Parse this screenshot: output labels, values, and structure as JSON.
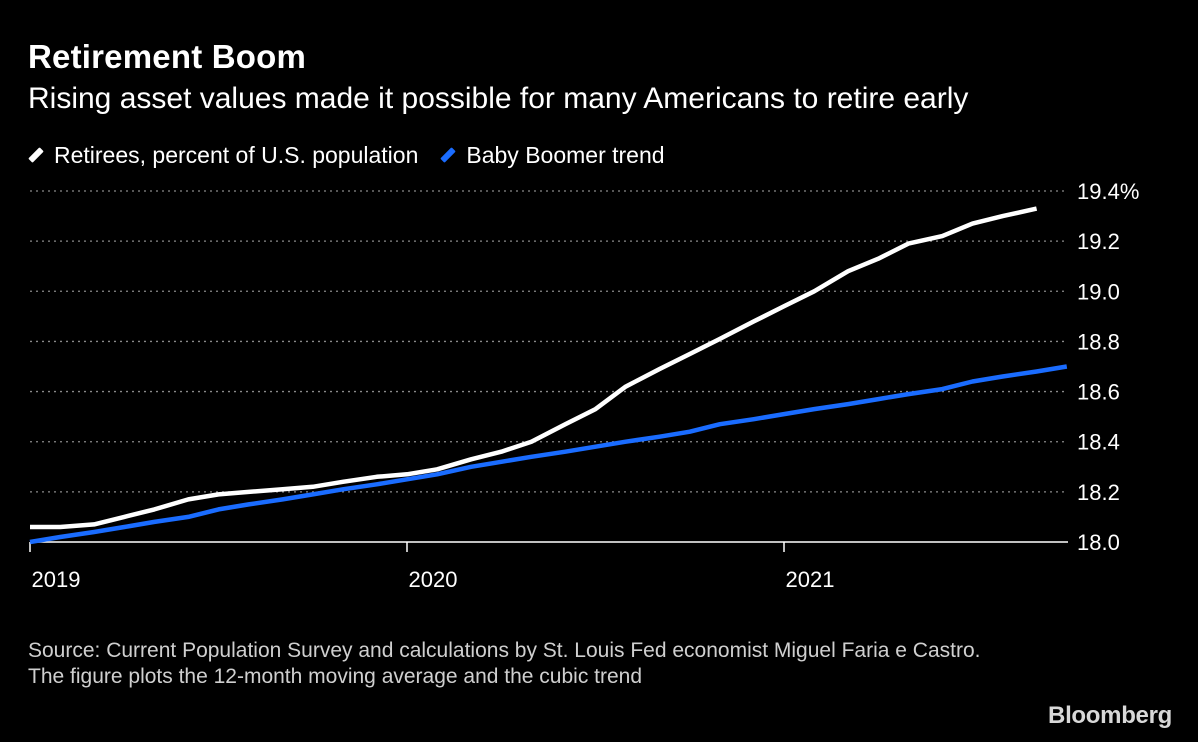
{
  "title": "Retirement Boom",
  "subtitle": "Rising asset values made it possible for many Americans to retire early",
  "source": "Source: Current Population Survey and calculations by St. Louis Fed economist Miguel Faria e Castro. The figure plots the 12-month moving average and the cubic trend",
  "brand": "Bloomberg",
  "colors": {
    "background": "#000000",
    "retirees": "#ffffff",
    "trend": "#1a6cff",
    "grid": "#8a8a8a"
  },
  "chart_data": {
    "type": "line",
    "title": "Retirement Boom",
    "ylim": [
      18.0,
      19.4
    ],
    "y_ticks": [
      {
        "value": 18.0,
        "label": "18.0"
      },
      {
        "value": 18.2,
        "label": "18.2"
      },
      {
        "value": 18.4,
        "label": "18.4"
      },
      {
        "value": 18.6,
        "label": "18.6"
      },
      {
        "value": 18.8,
        "label": "18.8"
      },
      {
        "value": 19.0,
        "label": "19.0"
      },
      {
        "value": 19.2,
        "label": "19.2"
      },
      {
        "value": 19.4,
        "label": "19.4%"
      }
    ],
    "x_ticks": [
      {
        "value": 2019.0,
        "label": "2019"
      },
      {
        "value": 2020.0,
        "label": "2020"
      },
      {
        "value": 2021.0,
        "label": "2021"
      }
    ],
    "xlim": [
      2019.0,
      2021.75
    ],
    "grid": "horizontal dotted",
    "legend_position": "top-left",
    "series": [
      {
        "name": "Retirees, percent of U.S. population",
        "color": "#ffffff",
        "points": [
          [
            2019.0,
            18.06
          ],
          [
            2019.08,
            18.06
          ],
          [
            2019.17,
            18.07
          ],
          [
            2019.25,
            18.1
          ],
          [
            2019.33,
            18.13
          ],
          [
            2019.42,
            18.17
          ],
          [
            2019.5,
            18.19
          ],
          [
            2019.58,
            18.2
          ],
          [
            2019.67,
            18.21
          ],
          [
            2019.75,
            18.22
          ],
          [
            2019.83,
            18.24
          ],
          [
            2019.92,
            18.26
          ],
          [
            2020.0,
            18.27
          ],
          [
            2020.08,
            18.29
          ],
          [
            2020.17,
            18.33
          ],
          [
            2020.25,
            18.36
          ],
          [
            2020.33,
            18.4
          ],
          [
            2020.42,
            18.47
          ],
          [
            2020.5,
            18.53
          ],
          [
            2020.58,
            18.62
          ],
          [
            2020.67,
            18.69
          ],
          [
            2020.75,
            18.75
          ],
          [
            2020.83,
            18.81
          ],
          [
            2020.92,
            18.88
          ],
          [
            2021.0,
            18.94
          ],
          [
            2021.08,
            19.0
          ],
          [
            2021.17,
            19.08
          ],
          [
            2021.25,
            19.13
          ],
          [
            2021.33,
            19.19
          ],
          [
            2021.42,
            19.22
          ],
          [
            2021.5,
            19.27
          ],
          [
            2021.58,
            19.3
          ],
          [
            2021.67,
            19.33
          ]
        ]
      },
      {
        "name": "Baby Boomer trend",
        "color": "#1a6cff",
        "points": [
          [
            2019.0,
            18.0
          ],
          [
            2019.08,
            18.02
          ],
          [
            2019.17,
            18.04
          ],
          [
            2019.25,
            18.06
          ],
          [
            2019.33,
            18.08
          ],
          [
            2019.42,
            18.1
          ],
          [
            2019.5,
            18.13
          ],
          [
            2019.58,
            18.15
          ],
          [
            2019.67,
            18.17
          ],
          [
            2019.75,
            18.19
          ],
          [
            2019.83,
            18.21
          ],
          [
            2019.92,
            18.23
          ],
          [
            2020.0,
            18.25
          ],
          [
            2020.08,
            18.27
          ],
          [
            2020.17,
            18.3
          ],
          [
            2020.25,
            18.32
          ],
          [
            2020.33,
            18.34
          ],
          [
            2020.42,
            18.36
          ],
          [
            2020.5,
            18.38
          ],
          [
            2020.58,
            18.4
          ],
          [
            2020.67,
            18.42
          ],
          [
            2020.75,
            18.44
          ],
          [
            2020.83,
            18.47
          ],
          [
            2020.92,
            18.49
          ],
          [
            2021.0,
            18.51
          ],
          [
            2021.08,
            18.53
          ],
          [
            2021.17,
            18.55
          ],
          [
            2021.25,
            18.57
          ],
          [
            2021.33,
            18.59
          ],
          [
            2021.42,
            18.61
          ],
          [
            2021.5,
            18.64
          ],
          [
            2021.58,
            18.66
          ],
          [
            2021.67,
            18.68
          ],
          [
            2021.75,
            18.7
          ]
        ]
      }
    ]
  }
}
